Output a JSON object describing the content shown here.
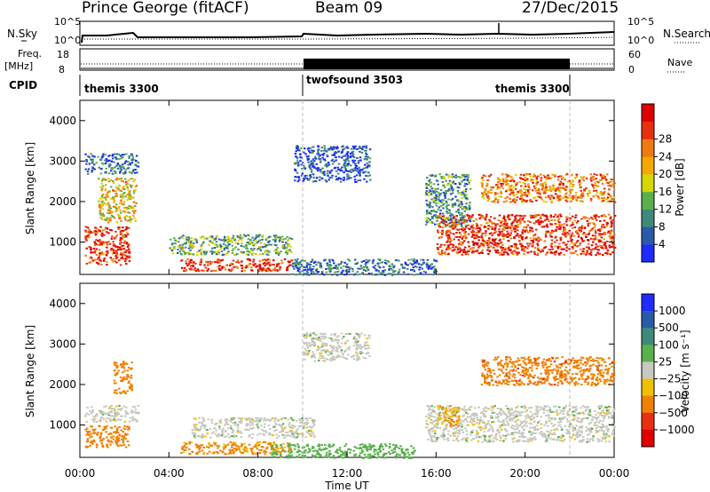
{
  "header": {
    "station": "Prince George (fitACF)",
    "beam": "Beam 09",
    "date": "27/Dec/2015"
  },
  "top_panels": {
    "nsky_label": "N.Sky",
    "nsearch_label": "N.Search",
    "noise_ticks_left": [
      "10^5",
      "10^0"
    ],
    "noise_ticks_right": [
      "10^5",
      "10^0"
    ],
    "freq_label": "Freq.",
    "freq_unit": "[MHz]",
    "freq_ticks": [
      "18",
      "8"
    ],
    "nave_label": "Nave",
    "nave_ticks": [
      "60",
      "0"
    ],
    "cpid_label": "CPID",
    "cpid_segments": [
      {
        "name": "themis 3300",
        "start_hour": 0,
        "end_hour": 10
      },
      {
        "name": "twofsound 3503",
        "start_hour": 10,
        "end_hour": 22
      },
      {
        "name": "themis 3300",
        "start_hour": 22,
        "end_hour": 24
      }
    ]
  },
  "chart_data": [
    {
      "type": "heatmap",
      "title": "Power",
      "xlabel": "Time UT",
      "ylabel": "Slant Range [km]",
      "colorbar_label": "Power [dB]",
      "xlim": [
        0,
        24
      ],
      "ylim": [
        200,
        4500
      ],
      "x_ticks": [
        "00:00",
        "04:00",
        "08:00",
        "12:00",
        "16:00",
        "20:00",
        "00:00"
      ],
      "y_ticks": [
        "1000",
        "2000",
        "3000",
        "4000"
      ],
      "colorbar_ticks": [
        "4",
        "8",
        "12",
        "16",
        "20",
        "24",
        "28"
      ],
      "colorbar_colors": [
        "#1f2bff",
        "#2a5aa8",
        "#3e8a7c",
        "#5ab04c",
        "#d6d600",
        "#f5a800",
        "#ef7a10",
        "#e83010",
        "#e00000"
      ],
      "scatter_regions": [
        {
          "t0": 0.2,
          "t1": 2.2,
          "r0": 450,
          "r1": 1400,
          "level": 26
        },
        {
          "t0": 0.8,
          "t1": 2.5,
          "r0": 1500,
          "r1": 2600,
          "level": 18
        },
        {
          "t0": 0.2,
          "t1": 2.6,
          "r0": 2700,
          "r1": 3200,
          "level": 8
        },
        {
          "t0": 4.5,
          "t1": 9.5,
          "r0": 300,
          "r1": 600,
          "level": 26
        },
        {
          "t0": 4.0,
          "t1": 9.5,
          "r0": 700,
          "r1": 1200,
          "level": 12
        },
        {
          "t0": 9.6,
          "t1": 13.0,
          "r0": 2500,
          "r1": 3400,
          "level": 6
        },
        {
          "t0": 9.5,
          "t1": 16.0,
          "r0": 200,
          "r1": 600,
          "level": 8
        },
        {
          "t0": 16.0,
          "t1": 24.0,
          "r0": 700,
          "r1": 1700,
          "level": 26
        },
        {
          "t0": 15.5,
          "t1": 17.5,
          "r0": 1400,
          "r1": 2700,
          "level": 10
        },
        {
          "t0": 18.0,
          "t1": 24.0,
          "r0": 2000,
          "r1": 2700,
          "level": 22
        }
      ]
    },
    {
      "type": "heatmap",
      "title": "Velocity",
      "xlabel": "Time UT",
      "ylabel": "Slant Range [km]",
      "colorbar_label": "Velocity [m s⁻¹]",
      "xlim": [
        0,
        24
      ],
      "ylim": [
        200,
        4500
      ],
      "x_ticks": [
        "00:00",
        "04:00",
        "08:00",
        "12:00",
        "16:00",
        "20:00",
        "00:00"
      ],
      "y_ticks": [
        "1000",
        "2000",
        "3000",
        "4000"
      ],
      "colorbar_ticks": [
        "1000",
        "500",
        "100",
        "25",
        "−25",
        "−100",
        "−500",
        "−1000"
      ],
      "colorbar_colors": [
        "#1f2bff",
        "#2a5aa8",
        "#3e8a7c",
        "#5ab04c",
        "#c8c8c0",
        "#f0c000",
        "#f08000",
        "#e83010",
        "#e00000"
      ],
      "scatter_regions": [
        {
          "t0": 0.2,
          "t1": 2.2,
          "r0": 450,
          "r1": 1000,
          "level": -200
        },
        {
          "t0": 0.2,
          "t1": 2.6,
          "r0": 1100,
          "r1": 1500,
          "level": 0
        },
        {
          "t0": 1.5,
          "t1": 2.3,
          "r0": 1800,
          "r1": 2600,
          "level": -300
        },
        {
          "t0": 4.5,
          "t1": 9.5,
          "r0": 300,
          "r1": 600,
          "level": -150
        },
        {
          "t0": 5.0,
          "t1": 10.5,
          "r0": 700,
          "r1": 1200,
          "level": 0
        },
        {
          "t0": 10.0,
          "t1": 13.0,
          "r0": 2600,
          "r1": 3300,
          "level": 0
        },
        {
          "t0": 8.5,
          "t1": 15.0,
          "r0": 200,
          "r1": 550,
          "level": 60
        },
        {
          "t0": 15.5,
          "t1": 24.0,
          "r0": 600,
          "r1": 1500,
          "level": 0
        },
        {
          "t0": 16.0,
          "t1": 17.0,
          "r0": 1000,
          "r1": 1500,
          "level": -100
        },
        {
          "t0": 18.0,
          "t1": 24.0,
          "r0": 2000,
          "r1": 2700,
          "level": -350
        }
      ]
    }
  ]
}
